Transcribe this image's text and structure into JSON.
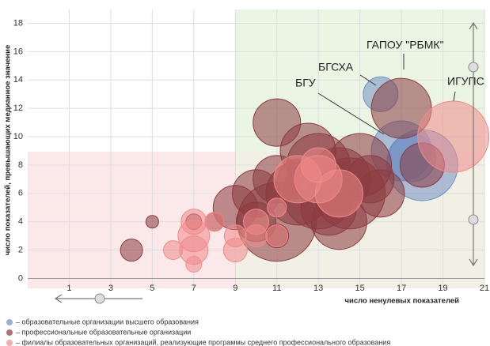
{
  "chart_data": {
    "type": "bubble",
    "xlabel": "число ненулевых показателей",
    "ylabel": "число показателей, превышающих медианное значение",
    "xlim": [
      -1,
      21
    ],
    "ylim": [
      -0.7,
      18.7
    ],
    "xticks": [
      1,
      3,
      5,
      7,
      9,
      11,
      13,
      15,
      17,
      19,
      21
    ],
    "yticks": [
      0,
      2,
      4,
      6,
      8,
      10,
      12,
      14,
      16,
      18
    ],
    "grid": true,
    "annotations": [
      "ГАПОУ \"РБМК\"",
      "БГСХА",
      "БГУ",
      "ИГУПС"
    ],
    "series": [
      {
        "name": "– образовательные организации высшего образования",
        "color": "#6f8fc4",
        "x": [
          16,
          17,
          18,
          17.5
        ],
        "y": [
          13,
          9,
          8,
          8.5
        ],
        "size": [
          22,
          38,
          45,
          30
        ]
      },
      {
        "name": "– профессиональные образовательные организации",
        "color": "#8b3a3f",
        "x": [
          4,
          5,
          7,
          9,
          10,
          11,
          11,
          11,
          12,
          12.5,
          13,
          13,
          13.5,
          14,
          14,
          14.5,
          15,
          15.5,
          16,
          17,
          18,
          11,
          12,
          10,
          8
        ],
        "y": [
          2,
          4,
          4,
          5,
          6,
          11,
          7,
          4,
          6,
          9,
          8,
          6,
          5,
          7,
          4,
          6,
          8,
          7,
          6,
          12,
          8,
          3,
          7,
          4,
          4
        ],
        "size": [
          14,
          8,
          10,
          28,
          30,
          30,
          30,
          50,
          40,
          35,
          40,
          45,
          35,
          40,
          35,
          45,
          40,
          30,
          30,
          38,
          28,
          15,
          25,
          25,
          12
        ]
      },
      {
        "name": "– филиалы образовательных организаций, реализующие программы среднего профессионального образования",
        "color": "#f08a8a",
        "x": [
          6,
          7,
          7,
          7,
          7,
          8,
          9,
          9,
          10,
          10,
          11,
          11,
          12,
          13,
          13,
          14,
          19.5
        ],
        "y": [
          2,
          1,
          2,
          3,
          4,
          4,
          2,
          3,
          3,
          4,
          3,
          5,
          7,
          7,
          8,
          6,
          10
        ],
        "size": [
          12,
          10,
          18,
          20,
          16,
          12,
          15,
          14,
          14,
          16,
          14,
          12,
          30,
          30,
          22,
          30,
          45
        ]
      }
    ]
  }
}
